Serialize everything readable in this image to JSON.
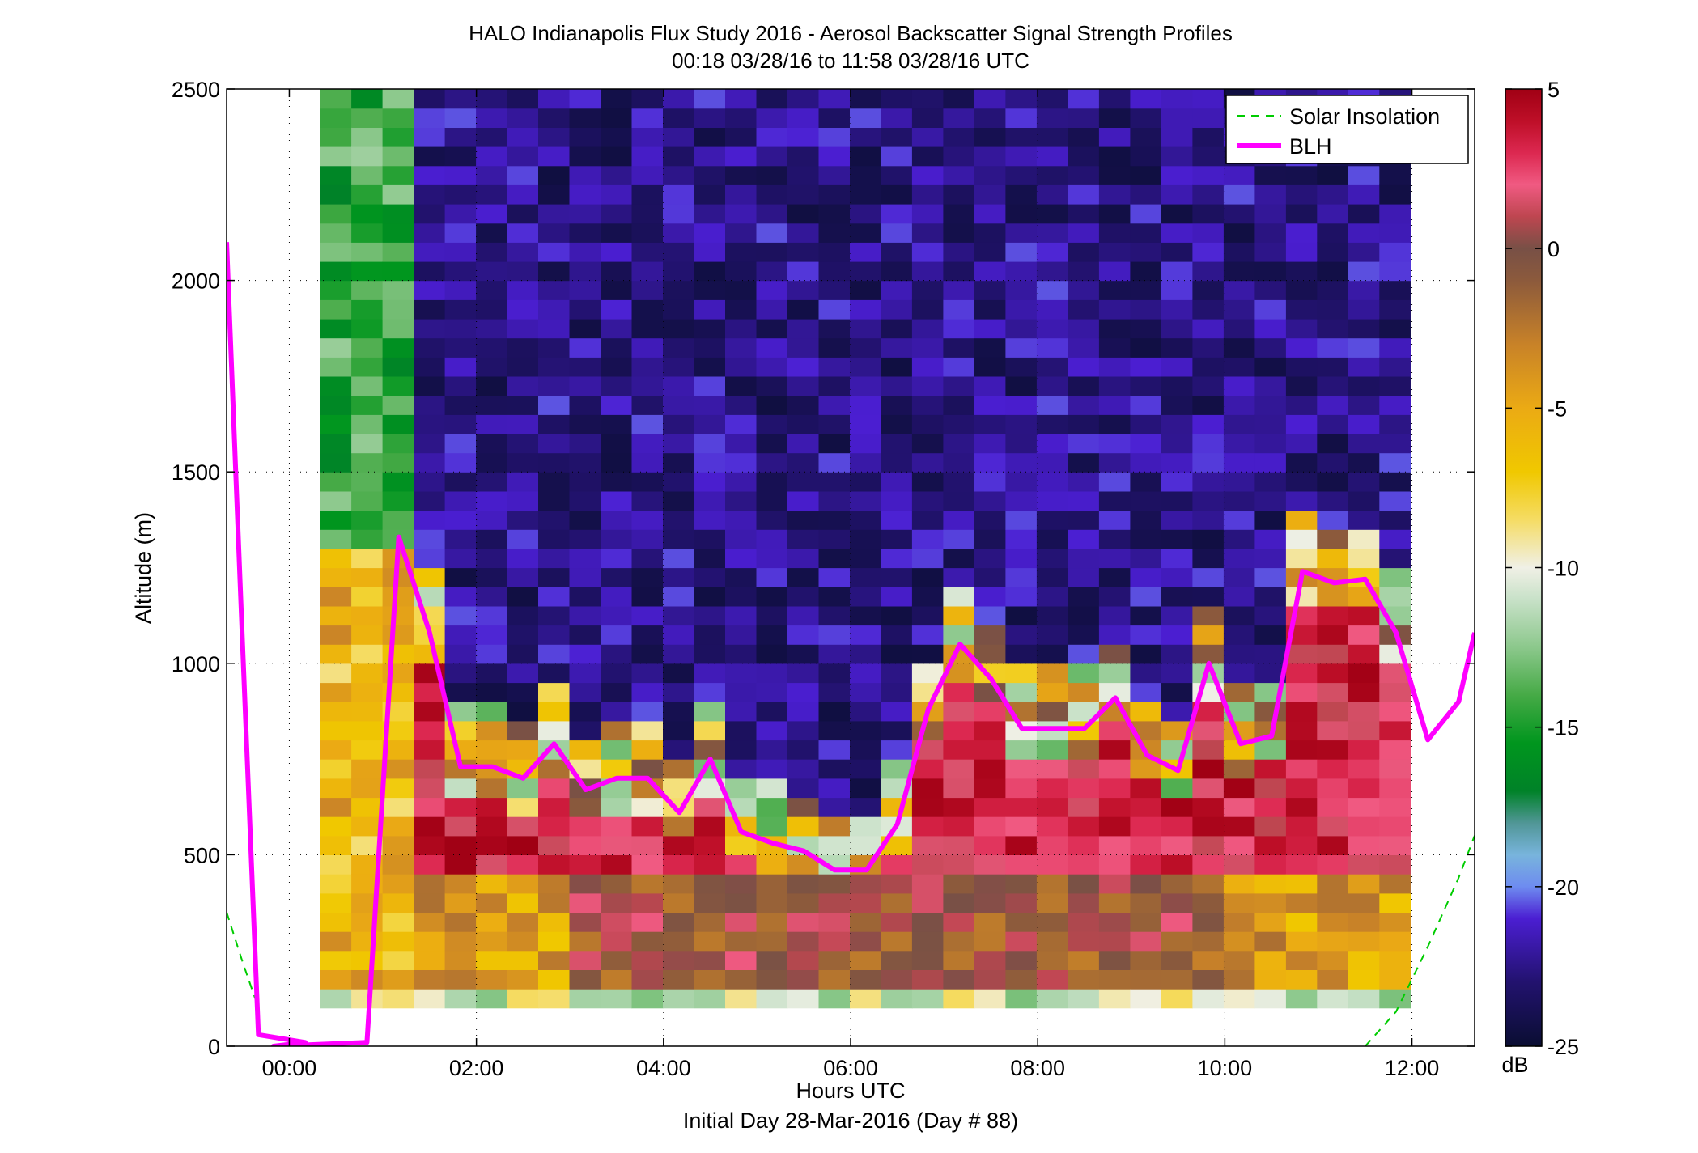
{
  "figure": {
    "title_line1": "HALO Indianapolis Flux Study 2016 - Aerosol Backscatter Signal Strength Profiles",
    "title_line2": "00:18 03/28/16 to 11:58 03/28/16  UTC"
  },
  "chart_data": {
    "type": "heatmap",
    "title": "HALO Indianapolis Flux Study 2016 - Aerosol Backscatter Signal Strength Profiles",
    "subtitle": "00:18 03/28/16 to 11:58 03/28/16  UTC",
    "xlabel": "Hours UTC",
    "xlabel2": "Initial Day 28-Mar-2016 (Day # 88)",
    "ylabel": "Altitude (m)",
    "xlim": [
      -0.67,
      12.67
    ],
    "ylim": [
      0,
      2500
    ],
    "x_ticks": [
      0,
      2,
      4,
      6,
      8,
      10,
      12
    ],
    "x_tick_labels": [
      "00:00",
      "02:00",
      "04:00",
      "06:00",
      "08:00",
      "10:00",
      "12:00"
    ],
    "y_ticks": [
      0,
      500,
      1000,
      1500,
      2000,
      2500
    ],
    "y_tick_labels": [
      "0",
      "500",
      "1000",
      "1500",
      "2000",
      "2500"
    ],
    "grid": true,
    "legend_position": "top-right",
    "heatmap": {
      "time_start": 0.33,
      "time_step": 0.333,
      "alt_start": 100,
      "alt_step": 50,
      "n_times": 35,
      "n_alts": 48,
      "units": "dB",
      "clim": [
        -25,
        5
      ]
    },
    "colorbar": {
      "ticks": [
        5,
        0,
        -5,
        -10,
        -15,
        -20,
        -25
      ],
      "tick_labels": [
        "5",
        "0",
        "-5",
        "-10",
        "-15",
        "-20",
        "-25"
      ],
      "label": "dB"
    },
    "series": [
      {
        "name": "BLH",
        "color": "#ff00ff",
        "x": [
          -0.67,
          -0.5,
          -0.33,
          0.17,
          -0.17,
          0.83,
          1.17,
          1.5,
          1.83,
          2.17,
          2.5,
          2.83,
          3.17,
          3.5,
          3.83,
          4.17,
          4.5,
          4.83,
          5.17,
          5.5,
          5.83,
          6.17,
          6.5,
          6.83,
          7.17,
          7.5,
          7.83,
          8.17,
          8.5,
          8.83,
          9.17,
          9.5,
          9.83,
          10.17,
          10.5,
          10.83,
          11.17,
          11.5,
          11.83,
          12.17,
          12.5,
          12.67
        ],
        "y": [
          2100,
          1050,
          30,
          10,
          0,
          10,
          1330,
          1080,
          730,
          730,
          700,
          790,
          670,
          700,
          700,
          610,
          750,
          560,
          530,
          510,
          460,
          460,
          580,
          880,
          1050,
          960,
          830,
          830,
          830,
          910,
          760,
          720,
          1000,
          790,
          810,
          1240,
          1210,
          1220,
          1080,
          800,
          900,
          1080
        ]
      },
      {
        "name": "Solar Insolation",
        "color": "#00cc00",
        "x": [
          -0.67,
          -0.5,
          -0.33,
          11.5,
          11.83,
          12.17,
          12.5,
          12.67
        ],
        "y": [
          350,
          220,
          100,
          0,
          90,
          260,
          440,
          550
        ]
      }
    ]
  }
}
